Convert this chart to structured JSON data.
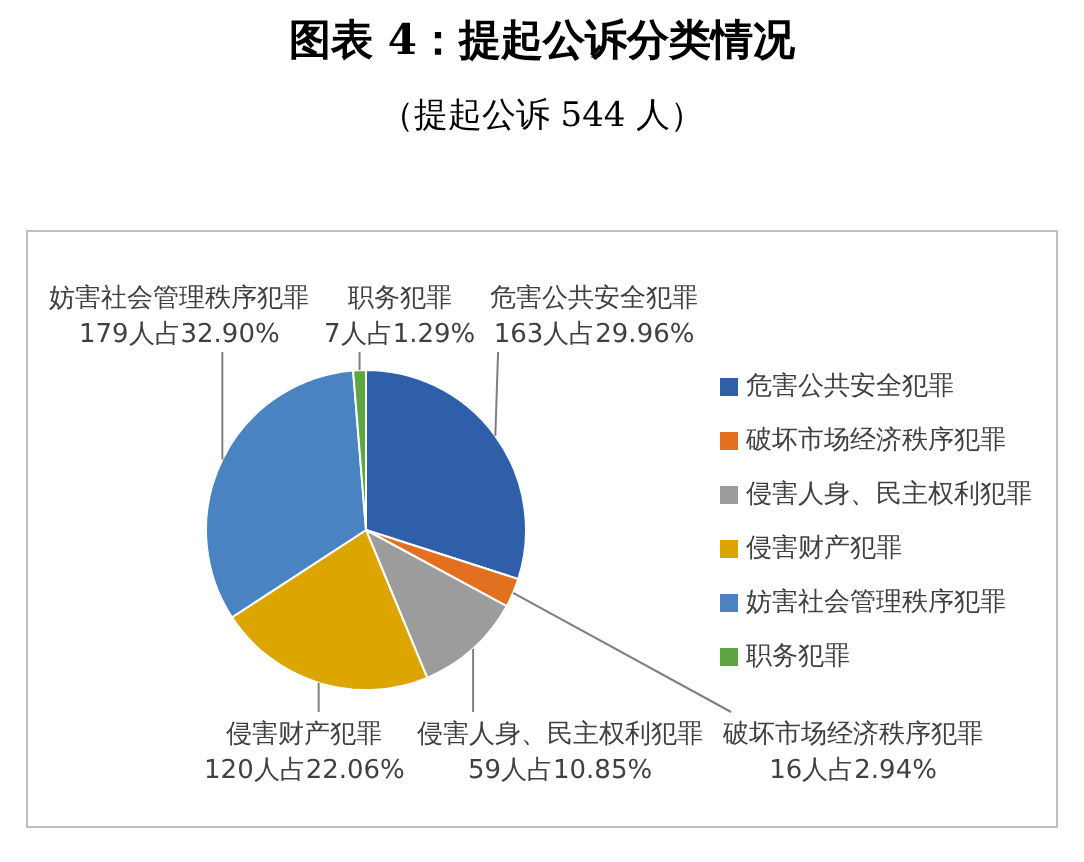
{
  "chart_data": {
    "type": "pie",
    "title": "图表 4：提起公诉分类情况",
    "subtitle": "（提起公诉 544 人）",
    "categories": [
      "危害公共安全犯罪",
      "破坏市场经济秩序犯罪",
      "侵害人身、民主权利犯罪",
      "侵害财产犯罪",
      "妨害社会管理秩序犯罪",
      "职务犯罪"
    ],
    "values": [
      163,
      16,
      59,
      120,
      179,
      7
    ],
    "colors": [
      "#2f5fa9",
      "#e2701f",
      "#9c9c9c",
      "#dca500",
      "#4a83c2",
      "#5ea640"
    ],
    "value_labels": [
      "163人占29.96%",
      "16人占2.94%",
      "59人占10.85%",
      "120人占22.06%",
      "179人占32.90%",
      "7人占1.29%"
    ],
    "legend": "right"
  }
}
